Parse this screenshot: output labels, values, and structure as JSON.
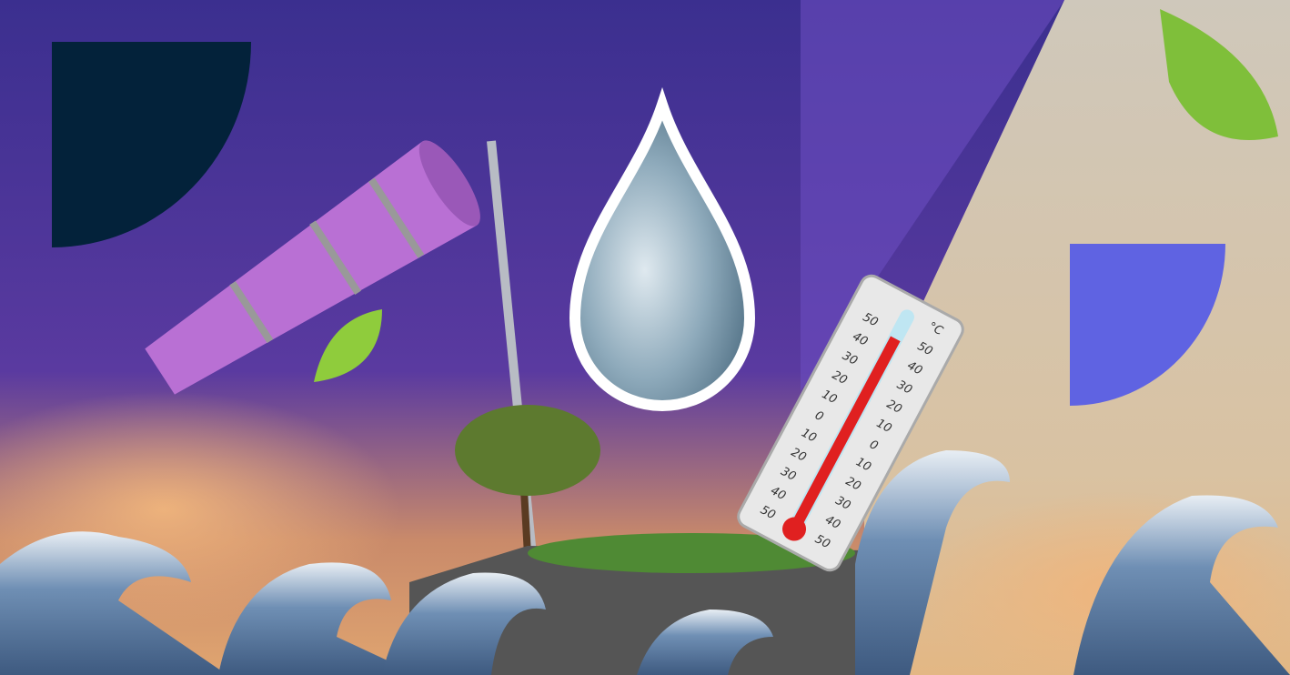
{
  "thermometer": {
    "unit": "°C",
    "scale": [
      "50",
      "40",
      "30",
      "20",
      "10",
      "0",
      "10",
      "20",
      "30",
      "40",
      "50"
    ]
  }
}
